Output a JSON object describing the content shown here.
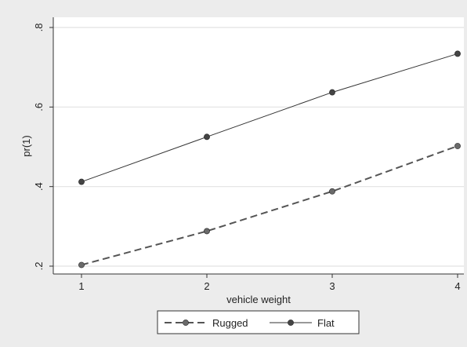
{
  "chart_data": {
    "type": "line",
    "title": "",
    "xlabel": "vehicle weight",
    "ylabel": "pr(1)",
    "x": [
      1,
      2,
      3,
      4
    ],
    "xticks": [
      1,
      2,
      3,
      4
    ],
    "xtick_labels": [
      "1",
      "2",
      "3",
      "4"
    ],
    "yticks": [
      0.2,
      0.4,
      0.6,
      0.8
    ],
    "ytick_labels": [
      ".2",
      ".4",
      ".6",
      ".8"
    ],
    "xlim": [
      1,
      4
    ],
    "ylim": [
      0.2,
      0.8
    ],
    "grid": true,
    "legend_position": "bottom",
    "series": [
      {
        "name": "Rugged",
        "style": "dashed",
        "color": "#555555",
        "marker_color": "#6a6a6a",
        "values": [
          0.203,
          0.288,
          0.388,
          0.502
        ]
      },
      {
        "name": "Flat",
        "style": "solid",
        "color": "#333333",
        "marker_color": "#444444",
        "values": [
          0.412,
          0.525,
          0.637,
          0.734
        ]
      }
    ]
  }
}
